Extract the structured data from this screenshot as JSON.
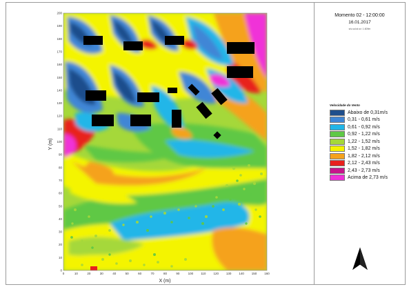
{
  "map": {
    "y_axis_label": "Y (m)",
    "x_axis_label": "X (m)",
    "y_ticks": [
      "0",
      "10",
      "20",
      "30",
      "40",
      "50",
      "60",
      "70",
      "80",
      "90",
      "100",
      "110",
      "120",
      "130",
      "140",
      "150",
      "160",
      "170",
      "180",
      "190",
      "200"
    ],
    "x_ticks": [
      "0",
      "10",
      "20",
      "30",
      "40",
      "50",
      "60",
      "70",
      "80",
      "90",
      "100",
      "110",
      "120",
      "130",
      "140",
      "150",
      "160"
    ]
  },
  "header": {
    "title": "Momento 02 - 12:00:00",
    "date": "16.01.2017",
    "info": "s/s.sol.st.sv: 1.609m"
  },
  "legend": {
    "title": "Velocidade do Vento",
    "items": [
      {
        "label": "Abaixo de 0,31m/s",
        "color": "#1f4e8c"
      },
      {
        "label": "0,31 - 0,61 m/s",
        "color": "#3f86d6"
      },
      {
        "label": "0,61 - 0,92 m/s",
        "color": "#21b6e8"
      },
      {
        "label": "0,92 - 1,22 m/s",
        "color": "#5ec845"
      },
      {
        "label": "1,22 - 1,52 m/s",
        "color": "#a5d83a"
      },
      {
        "label": "1,52 - 1,82 m/s",
        "color": "#f4f400"
      },
      {
        "label": "1,82 - 2,12 m/s",
        "color": "#f5a21c"
      },
      {
        "label": "2,12 - 2,43 m/s",
        "color": "#e8201d"
      },
      {
        "label": "2,43 - 2,73 m/s",
        "color": "#c8148c"
      },
      {
        "label": "Acima de 2,73 m/s",
        "color": "#f030d8"
      }
    ]
  },
  "north_arrow": {
    "icon": "north-arrow-icon"
  }
}
